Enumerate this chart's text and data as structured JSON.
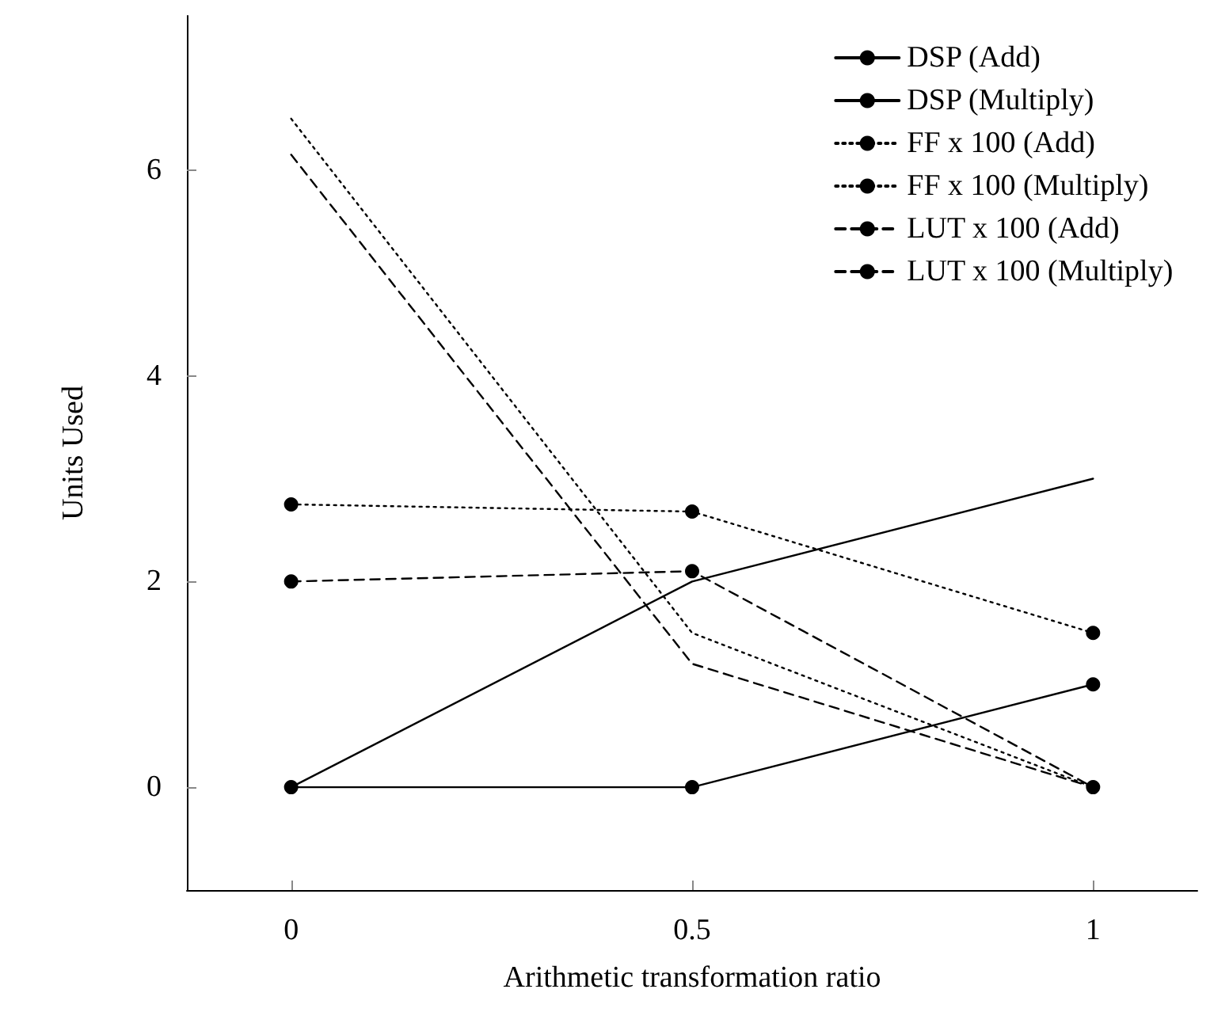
{
  "chart_data": {
    "type": "line",
    "xlabel": "Arithmetic transformation ratio",
    "ylabel": "Units Used",
    "x": [
      0,
      0.5,
      1
    ],
    "xlim": [
      -0.13,
      1.13
    ],
    "xticks": [
      0,
      0.5,
      1
    ],
    "ylim": [
      -1,
      7.5
    ],
    "yticks": [
      0,
      2,
      4,
      6
    ],
    "grid": false,
    "legend": "top right",
    "series": [
      {
        "name": "DSP (Add)",
        "color": "#000000",
        "values": [
          0,
          0,
          1
        ],
        "marker": "circle",
        "line_style": "solid"
      },
      {
        "name": "DSP (Multiply)",
        "color": "#000000",
        "values": [
          0,
          2,
          3
        ],
        "marker": "none",
        "line_style": "solid"
      },
      {
        "name": "FF x 100 (Add)",
        "color": "#000000",
        "values": [
          2.75,
          2.68,
          1.5
        ],
        "marker": "circle",
        "line_style": "dotted"
      },
      {
        "name": "FF x 100 (Multiply)",
        "color": "#000000",
        "values": [
          6.5,
          1.5,
          0
        ],
        "marker": "none",
        "line_style": "dotted"
      },
      {
        "name": "LUT x 100 (Add)",
        "color": "#000000",
        "values": [
          2,
          2.1,
          0
        ],
        "marker": "circle",
        "line_style": "dashed"
      },
      {
        "name": "LUT x 100 (Multiply)",
        "color": "#000000",
        "values": [
          6.15,
          1.2,
          0
        ],
        "marker": "none",
        "line_style": "dashed"
      }
    ]
  }
}
